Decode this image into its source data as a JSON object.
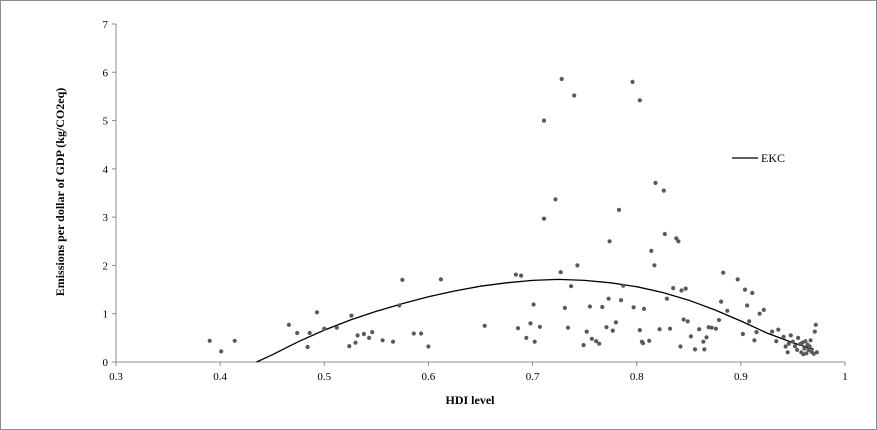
{
  "chart_data": {
    "type": "scatter",
    "xlabel": "HDI  level",
    "ylabel": "Emissions per dollar of GDP  (kg/CO2eq)",
    "xlim": [
      0.3,
      1
    ],
    "ylim": [
      0,
      7
    ],
    "x_ticks": [
      "0.3",
      "0.4",
      "0.5",
      "0.6",
      "0.7",
      "0.8",
      "0.9",
      "1"
    ],
    "y_ticks": [
      "0",
      "1",
      "2",
      "3",
      "4",
      "5",
      "6",
      "7"
    ],
    "grid": false,
    "legend_position": "right",
    "legend": [
      "EKC"
    ],
    "marker_color": "#595959",
    "curve_color": "#000000",
    "curve": {
      "name": "EKC",
      "x": [
        0.435,
        0.45,
        0.475,
        0.5,
        0.525,
        0.55,
        0.575,
        0.6,
        0.625,
        0.65,
        0.675,
        0.7,
        0.725,
        0.75,
        0.775,
        0.8,
        0.825,
        0.85,
        0.875,
        0.9,
        0.925,
        0.95,
        0.97
      ],
      "y": [
        0.0,
        0.15,
        0.42,
        0.66,
        0.87,
        1.05,
        1.21,
        1.35,
        1.47,
        1.57,
        1.64,
        1.69,
        1.71,
        1.69,
        1.64,
        1.56,
        1.44,
        1.28,
        1.08,
        0.85,
        0.6,
        0.4,
        0.26
      ]
    },
    "points": [
      [
        0.39,
        0.44
      ],
      [
        0.401,
        0.22
      ],
      [
        0.414,
        0.44
      ],
      [
        0.466,
        0.77
      ],
      [
        0.474,
        0.6
      ],
      [
        0.484,
        0.31
      ],
      [
        0.486,
        0.6
      ],
      [
        0.493,
        1.03
      ],
      [
        0.5,
        0.69
      ],
      [
        0.512,
        0.71
      ],
      [
        0.524,
        0.33
      ],
      [
        0.526,
        0.96
      ],
      [
        0.53,
        0.4
      ],
      [
        0.532,
        0.55
      ],
      [
        0.538,
        0.58
      ],
      [
        0.543,
        0.5
      ],
      [
        0.546,
        0.62
      ],
      [
        0.556,
        0.45
      ],
      [
        0.566,
        0.42
      ],
      [
        0.572,
        1.17
      ],
      [
        0.575,
        1.7
      ],
      [
        0.586,
        0.59
      ],
      [
        0.593,
        0.59
      ],
      [
        0.6,
        0.32
      ],
      [
        0.612,
        1.71
      ],
      [
        0.654,
        0.75
      ],
      [
        0.684,
        1.81
      ],
      [
        0.686,
        0.7
      ],
      [
        0.689,
        1.79
      ],
      [
        0.694,
        0.5
      ],
      [
        0.698,
        0.8
      ],
      [
        0.701,
        1.19
      ],
      [
        0.702,
        0.42
      ],
      [
        0.707,
        0.73
      ],
      [
        0.711,
        5.0
      ],
      [
        0.711,
        2.97
      ],
      [
        0.722,
        3.37
      ],
      [
        0.727,
        1.86
      ],
      [
        0.728,
        5.86
      ],
      [
        0.731,
        1.12
      ],
      [
        0.734,
        0.71
      ],
      [
        0.737,
        1.57
      ],
      [
        0.74,
        5.52
      ],
      [
        0.743,
        2.0
      ],
      [
        0.749,
        0.35
      ],
      [
        0.752,
        0.63
      ],
      [
        0.755,
        1.15
      ],
      [
        0.757,
        0.48
      ],
      [
        0.761,
        0.43
      ],
      [
        0.764,
        0.38
      ],
      [
        0.767,
        1.14
      ],
      [
        0.771,
        0.72
      ],
      [
        0.773,
        1.31
      ],
      [
        0.774,
        2.5
      ],
      [
        0.777,
        0.65
      ],
      [
        0.78,
        0.82
      ],
      [
        0.783,
        3.15
      ],
      [
        0.785,
        1.28
      ],
      [
        0.787,
        1.58
      ],
      [
        0.796,
        5.8
      ],
      [
        0.797,
        1.13
      ],
      [
        0.803,
        5.42
      ],
      [
        0.803,
        0.66
      ],
      [
        0.805,
        0.42
      ],
      [
        0.806,
        0.39
      ],
      [
        0.807,
        1.1
      ],
      [
        0.812,
        0.44
      ],
      [
        0.814,
        2.3
      ],
      [
        0.817,
        2.0
      ],
      [
        0.818,
        3.71
      ],
      [
        0.822,
        0.68
      ],
      [
        0.826,
        3.55
      ],
      [
        0.827,
        2.65
      ],
      [
        0.829,
        1.31
      ],
      [
        0.832,
        0.69
      ],
      [
        0.835,
        1.53
      ],
      [
        0.838,
        2.56
      ],
      [
        0.84,
        2.5
      ],
      [
        0.842,
        0.32
      ],
      [
        0.843,
        1.48
      ],
      [
        0.845,
        0.88
      ],
      [
        0.847,
        1.52
      ],
      [
        0.849,
        0.84
      ],
      [
        0.852,
        0.53
      ],
      [
        0.856,
        0.26
      ],
      [
        0.86,
        0.68
      ],
      [
        0.864,
        0.42
      ],
      [
        0.865,
        0.26
      ],
      [
        0.867,
        0.51
      ],
      [
        0.869,
        0.72
      ],
      [
        0.872,
        0.71
      ],
      [
        0.876,
        0.69
      ],
      [
        0.879,
        0.87
      ],
      [
        0.881,
        1.25
      ],
      [
        0.883,
        1.85
      ],
      [
        0.887,
        1.06
      ],
      [
        0.897,
        1.71
      ],
      [
        0.902,
        0.58
      ],
      [
        0.904,
        1.5
      ],
      [
        0.906,
        1.17
      ],
      [
        0.908,
        0.84
      ],
      [
        0.911,
        1.43
      ],
      [
        0.913,
        0.45
      ],
      [
        0.915,
        0.62
      ],
      [
        0.918,
        1.0
      ],
      [
        0.922,
        1.08
      ],
      [
        0.93,
        0.63
      ],
      [
        0.934,
        0.43
      ],
      [
        0.936,
        0.67
      ],
      [
        0.941,
        0.52
      ],
      [
        0.943,
        0.32
      ],
      [
        0.945,
        0.2
      ],
      [
        0.946,
        0.38
      ],
      [
        0.948,
        0.55
      ],
      [
        0.95,
        0.42
      ],
      [
        0.952,
        0.33
      ],
      [
        0.954,
        0.25
      ],
      [
        0.955,
        0.5
      ],
      [
        0.957,
        0.37
      ],
      [
        0.958,
        0.2
      ],
      [
        0.959,
        0.4
      ],
      [
        0.96,
        0.16
      ],
      [
        0.961,
        0.28
      ],
      [
        0.962,
        0.43
      ],
      [
        0.963,
        0.18
      ],
      [
        0.964,
        0.36
      ],
      [
        0.965,
        0.25
      ],
      [
        0.966,
        0.32
      ],
      [
        0.967,
        0.45
      ],
      [
        0.968,
        0.21
      ],
      [
        0.97,
        0.17
      ],
      [
        0.971,
        0.63
      ],
      [
        0.972,
        0.77
      ],
      [
        0.973,
        0.2
      ]
    ]
  }
}
